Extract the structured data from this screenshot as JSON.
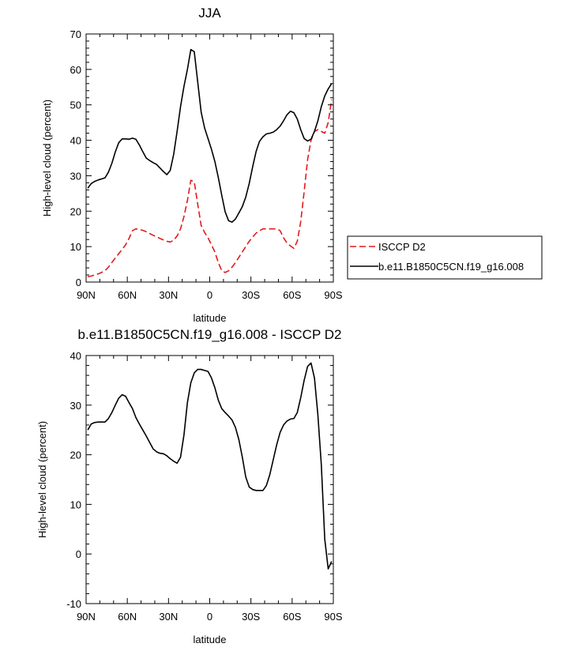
{
  "chart_data": [
    {
      "type": "line",
      "title": "JJA",
      "xlabel": "latitude",
      "ylabel": "High-level cloud (percent)",
      "xlim": [
        90,
        -90
      ],
      "ylim": [
        0,
        70
      ],
      "x_tick_values": [
        90,
        60,
        30,
        0,
        -30,
        -60,
        -90
      ],
      "x_ticks": [
        "90N",
        "60N",
        "30N",
        "0",
        "30S",
        "60S",
        "90S"
      ],
      "y_tick_values": [
        0,
        10,
        20,
        30,
        40,
        50,
        60,
        70
      ],
      "y_ticks": [
        "0",
        "10",
        "20",
        "30",
        "40",
        "50",
        "60",
        "70"
      ],
      "legend_position": "right",
      "grid": false,
      "series": [
        {
          "name": "ISCCP D2",
          "color": "#e41a1c",
          "dash": "dashed",
          "x": [
            88.75,
            86.25,
            83.75,
            81.25,
            78.75,
            76.25,
            73.75,
            71.25,
            68.75,
            66.25,
            63.75,
            61.25,
            58.75,
            56.25,
            53.75,
            51.25,
            48.75,
            46.25,
            43.75,
            41.25,
            38.75,
            36.25,
            33.75,
            31.25,
            28.75,
            26.25,
            23.75,
            21.25,
            18.75,
            16.25,
            13.75,
            11.25,
            8.75,
            6.25,
            3.75,
            1.25,
            -1.25,
            -3.75,
            -6.25,
            -8.75,
            -11.25,
            -13.75,
            -16.25,
            -18.75,
            -21.25,
            -23.75,
            -26.25,
            -28.75,
            -31.25,
            -33.75,
            -36.25,
            -38.75,
            -41.25,
            -43.75,
            -46.25,
            -48.75,
            -51.25,
            -53.75,
            -56.25,
            -58.75,
            -61.25,
            -63.75,
            -66.25,
            -68.75,
            -71.25,
            -73.75,
            -76.25,
            -78.75,
            -81.25,
            -83.75,
            -86.25,
            -88.75
          ],
          "values": [
            1.5,
            1.7,
            2.0,
            2.3,
            2.7,
            3.2,
            4.2,
            5.5,
            6.8,
            8.0,
            9.2,
            10.5,
            12.3,
            14.5,
            15.0,
            14.8,
            14.6,
            14.2,
            13.7,
            13.2,
            12.8,
            12.3,
            11.9,
            11.5,
            11.3,
            11.8,
            13.0,
            15.0,
            18.5,
            23.0,
            28.7,
            28.3,
            22.0,
            16.0,
            14.0,
            12.5,
            10.5,
            8.5,
            5.5,
            3.2,
            2.7,
            3.2,
            4.2,
            5.5,
            7.0,
            8.5,
            10.0,
            11.5,
            12.7,
            13.8,
            14.5,
            15.0,
            15.0,
            15.0,
            15.0,
            15.0,
            14.5,
            12.5,
            11.0,
            10.2,
            9.5,
            11.5,
            17.0,
            25.5,
            34.5,
            40.0,
            42.5,
            43.0,
            42.5,
            42.0,
            45.0,
            51.5
          ]
        },
        {
          "name": "b.e11.B1850C5CN.f19_g16.008",
          "color": "#000000",
          "dash": "solid",
          "x": [
            88.75,
            86.25,
            83.75,
            81.25,
            78.75,
            76.25,
            73.75,
            71.25,
            68.75,
            66.25,
            63.75,
            61.25,
            58.75,
            56.25,
            53.75,
            51.25,
            48.75,
            46.25,
            43.75,
            41.25,
            38.75,
            36.25,
            33.75,
            31.25,
            28.75,
            26.25,
            23.75,
            21.25,
            18.75,
            16.25,
            13.75,
            11.25,
            8.75,
            6.25,
            3.75,
            1.25,
            -1.25,
            -3.75,
            -6.25,
            -8.75,
            -11.25,
            -13.75,
            -16.25,
            -18.75,
            -21.25,
            -23.75,
            -26.25,
            -28.75,
            -31.25,
            -33.75,
            -36.25,
            -38.75,
            -41.25,
            -43.75,
            -46.25,
            -48.75,
            -51.25,
            -53.75,
            -56.25,
            -58.75,
            -61.25,
            -63.75,
            -66.25,
            -68.75,
            -71.25,
            -73.75,
            -76.25,
            -78.75,
            -81.25,
            -83.75,
            -86.25,
            -88.75
          ],
          "values": [
            26.5,
            27.8,
            28.4,
            28.8,
            29.1,
            29.4,
            31.0,
            33.5,
            36.7,
            39.3,
            40.4,
            40.4,
            40.3,
            40.6,
            40.3,
            38.7,
            36.8,
            35.0,
            34.3,
            33.7,
            33.2,
            32.2,
            31.2,
            30.3,
            31.5,
            36.0,
            42.5,
            49.5,
            55.2,
            60.0,
            65.6,
            65.0,
            56.5,
            48.0,
            43.5,
            40.5,
            37.5,
            34.0,
            29.5,
            24.5,
            19.8,
            17.3,
            16.9,
            17.8,
            19.5,
            21.3,
            24.0,
            27.8,
            32.5,
            36.8,
            39.7,
            41.0,
            41.8,
            42.0,
            42.3,
            43.0,
            44.0,
            45.5,
            47.2,
            48.2,
            47.8,
            46.0,
            43.0,
            40.5,
            39.8,
            40.3,
            42.5,
            45.5,
            49.5,
            52.5,
            54.5,
            56.0
          ]
        }
      ]
    },
    {
      "type": "line",
      "title": "b.e11.B1850C5CN.f19_g16.008 - ISCCP D2",
      "xlabel": "latitude",
      "ylabel": "High-level cloud (percent)",
      "xlim": [
        90,
        -90
      ],
      "ylim": [
        -10,
        40
      ],
      "x_tick_values": [
        90,
        60,
        30,
        0,
        -30,
        -60,
        -90
      ],
      "x_ticks": [
        "90N",
        "60N",
        "30N",
        "0",
        "30S",
        "60S",
        "90S"
      ],
      "y_tick_values": [
        -10,
        0,
        10,
        20,
        30,
        40
      ],
      "y_ticks": [
        "-10",
        "0",
        "10",
        "20",
        "30",
        "40"
      ],
      "grid": false,
      "series": [
        {
          "color": "#000000",
          "dash": "solid",
          "x": [
            88.75,
            86.25,
            83.75,
            81.25,
            78.75,
            76.25,
            73.75,
            71.25,
            68.75,
            66.25,
            63.75,
            61.25,
            58.75,
            56.25,
            53.75,
            51.25,
            48.75,
            46.25,
            43.75,
            41.25,
            38.75,
            36.25,
            33.75,
            31.25,
            28.75,
            26.25,
            23.75,
            21.25,
            18.75,
            16.25,
            13.75,
            11.25,
            8.75,
            6.25,
            3.75,
            1.25,
            -1.25,
            -3.75,
            -6.25,
            -8.75,
            -11.25,
            -13.75,
            -16.25,
            -18.75,
            -21.25,
            -23.75,
            -26.25,
            -28.75,
            -31.25,
            -33.75,
            -36.25,
            -38.75,
            -41.25,
            -43.75,
            -46.25,
            -48.75,
            -51.25,
            -53.75,
            -56.25,
            -58.75,
            -61.25,
            -63.75,
            -66.25,
            -68.75,
            -71.25,
            -73.75,
            -76.25,
            -78.75,
            -81.25,
            -83.75,
            -86.25,
            -88.75
          ],
          "values": [
            25.0,
            26.2,
            26.5,
            26.6,
            26.6,
            26.6,
            27.3,
            28.5,
            30.0,
            31.4,
            32.1,
            31.8,
            30.5,
            29.3,
            27.5,
            26.2,
            25.0,
            23.8,
            22.5,
            21.2,
            20.6,
            20.3,
            20.2,
            19.8,
            19.2,
            18.7,
            18.3,
            19.5,
            24.0,
            30.5,
            34.5,
            36.5,
            37.2,
            37.2,
            37.0,
            36.8,
            35.5,
            33.5,
            31.0,
            29.3,
            28.5,
            27.8,
            27.0,
            25.5,
            23.0,
            19.5,
            15.5,
            13.5,
            13.0,
            12.8,
            12.8,
            12.8,
            13.8,
            16.0,
            19.0,
            22.0,
            24.5,
            26.0,
            26.8,
            27.2,
            27.3,
            28.5,
            31.5,
            35.0,
            37.8,
            38.5,
            35.5,
            28.0,
            18.0,
            3.0,
            -3.0,
            -1.5
          ]
        }
      ]
    }
  ]
}
